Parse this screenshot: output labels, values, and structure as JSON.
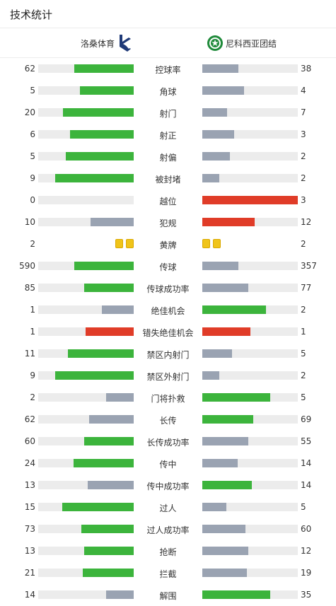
{
  "header": {
    "title": "技术统计"
  },
  "teams": {
    "home": "洛桑体育",
    "away": "尼科西亚团结"
  },
  "colors": {
    "green": "#3cb43c",
    "gray": "#9aa3b2",
    "red": "#e03c28",
    "yellow": "#f0c419"
  },
  "stats": [
    {
      "label": "控球率",
      "home": "62",
      "away": "38",
      "home_fill": 0.62,
      "away_fill": 0.38,
      "home_color": "green",
      "away_color": "gray"
    },
    {
      "label": "角球",
      "home": "5",
      "away": "4",
      "home_fill": 0.56,
      "away_fill": 0.44,
      "home_color": "green",
      "away_color": "gray"
    },
    {
      "label": "射门",
      "home": "20",
      "away": "7",
      "home_fill": 0.74,
      "away_fill": 0.26,
      "home_color": "green",
      "away_color": "gray"
    },
    {
      "label": "射正",
      "home": "6",
      "away": "3",
      "home_fill": 0.67,
      "away_fill": 0.33,
      "home_color": "green",
      "away_color": "gray"
    },
    {
      "label": "射偏",
      "home": "5",
      "away": "2",
      "home_fill": 0.71,
      "away_fill": 0.29,
      "home_color": "green",
      "away_color": "gray"
    },
    {
      "label": "被封堵",
      "home": "9",
      "away": "2",
      "home_fill": 0.82,
      "away_fill": 0.18,
      "home_color": "green",
      "away_color": "gray"
    },
    {
      "label": "越位",
      "home": "0",
      "away": "3",
      "home_fill": 0.0,
      "away_fill": 1.0,
      "home_color": "gray",
      "away_color": "red"
    },
    {
      "label": "犯规",
      "home": "10",
      "away": "12",
      "home_fill": 0.45,
      "away_fill": 0.55,
      "home_color": "gray",
      "away_color": "red"
    },
    {
      "label": "黄牌",
      "home": "2",
      "away": "2",
      "cards": true,
      "home_cards": 2,
      "away_cards": 2
    },
    {
      "label": "传球",
      "home": "590",
      "away": "357",
      "home_fill": 0.62,
      "away_fill": 0.38,
      "home_color": "green",
      "away_color": "gray"
    },
    {
      "label": "传球成功率",
      "home": "85",
      "away": "77",
      "home_fill": 0.52,
      "away_fill": 0.48,
      "home_color": "green",
      "away_color": "gray"
    },
    {
      "label": "绝佳机会",
      "home": "1",
      "away": "2",
      "home_fill": 0.33,
      "away_fill": 0.67,
      "home_color": "gray",
      "away_color": "green"
    },
    {
      "label": "错失绝佳机会",
      "home": "1",
      "away": "1",
      "home_fill": 0.5,
      "away_fill": 0.5,
      "home_color": "red",
      "away_color": "red"
    },
    {
      "label": "禁区内射门",
      "home": "11",
      "away": "5",
      "home_fill": 0.69,
      "away_fill": 0.31,
      "home_color": "green",
      "away_color": "gray"
    },
    {
      "label": "禁区外射门",
      "home": "9",
      "away": "2",
      "home_fill": 0.82,
      "away_fill": 0.18,
      "home_color": "green",
      "away_color": "gray"
    },
    {
      "label": "门将扑救",
      "home": "2",
      "away": "5",
      "home_fill": 0.29,
      "away_fill": 0.71,
      "home_color": "gray",
      "away_color": "green"
    },
    {
      "label": "长传",
      "home": "62",
      "away": "69",
      "home_fill": 0.47,
      "away_fill": 0.53,
      "home_color": "gray",
      "away_color": "green"
    },
    {
      "label": "长传成功率",
      "home": "60",
      "away": "55",
      "home_fill": 0.52,
      "away_fill": 0.48,
      "home_color": "green",
      "away_color": "gray"
    },
    {
      "label": "传中",
      "home": "24",
      "away": "14",
      "home_fill": 0.63,
      "away_fill": 0.37,
      "home_color": "green",
      "away_color": "gray"
    },
    {
      "label": "传中成功率",
      "home": "13",
      "away": "14",
      "home_fill": 0.48,
      "away_fill": 0.52,
      "home_color": "gray",
      "away_color": "green"
    },
    {
      "label": "过人",
      "home": "15",
      "away": "5",
      "home_fill": 0.75,
      "away_fill": 0.25,
      "home_color": "green",
      "away_color": "gray"
    },
    {
      "label": "过人成功率",
      "home": "73",
      "away": "60",
      "home_fill": 0.55,
      "away_fill": 0.45,
      "home_color": "green",
      "away_color": "gray"
    },
    {
      "label": "抢断",
      "home": "13",
      "away": "12",
      "home_fill": 0.52,
      "away_fill": 0.48,
      "home_color": "green",
      "away_color": "gray"
    },
    {
      "label": "拦截",
      "home": "21",
      "away": "19",
      "home_fill": 0.53,
      "away_fill": 0.47,
      "home_color": "green",
      "away_color": "gray"
    },
    {
      "label": "解围",
      "home": "14",
      "away": "35",
      "home_fill": 0.29,
      "away_fill": 0.71,
      "home_color": "gray",
      "away_color": "green"
    }
  ]
}
